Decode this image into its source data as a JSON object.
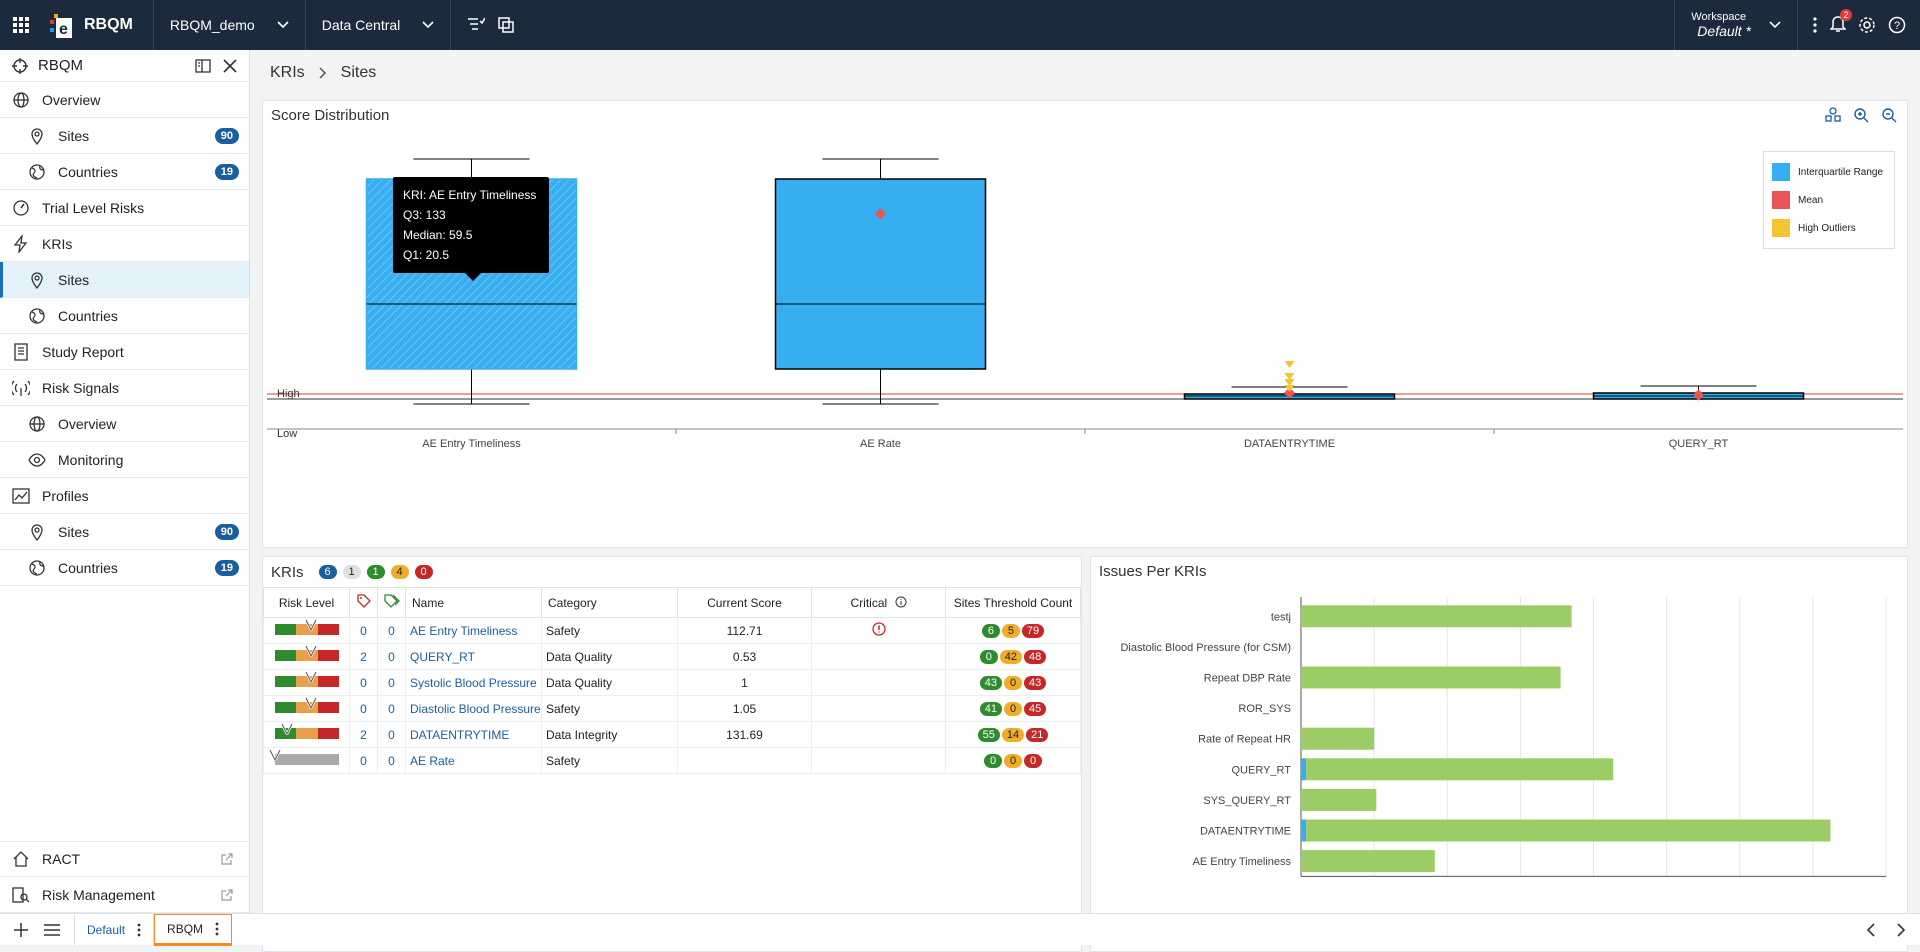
{
  "topbar": {
    "brand": "RBQM",
    "project": "RBQM_demo",
    "module": "Data Central",
    "workspace_label": "Workspace",
    "workspace_value": "Default",
    "workspace_star": "*",
    "notif_count": "2"
  },
  "sidebar": {
    "title": "RBQM",
    "items": [
      {
        "label": "Overview",
        "icon": "globe-icon"
      },
      {
        "label": "Sites",
        "icon": "location-pin-icon",
        "count": "90"
      },
      {
        "label": "Countries",
        "icon": "globe-grid-icon",
        "count": "19"
      },
      {
        "label": "Trial Level Risks",
        "icon": "gauge-icon"
      },
      {
        "label": "KRIs",
        "icon": "lightning-icon"
      },
      {
        "label": "Sites",
        "icon": "location-pin-icon"
      },
      {
        "label": "Countries",
        "icon": "globe-grid-icon"
      },
      {
        "label": "Study Report",
        "icon": "document-icon"
      },
      {
        "label": "Risk Signals",
        "icon": "signal-icon"
      },
      {
        "label": "Overview",
        "icon": "globe-icon"
      },
      {
        "label": "Monitoring",
        "icon": "eye-icon"
      },
      {
        "label": "Profiles",
        "icon": "chart-icon"
      },
      {
        "label": "Sites",
        "icon": "location-pin-icon",
        "count": "90"
      },
      {
        "label": "Countries",
        "icon": "globe-grid-icon",
        "count": "19"
      }
    ],
    "bottom": [
      {
        "label": "RACT",
        "icon": "home-icon"
      },
      {
        "label": "Risk Management",
        "icon": "search-doc-icon"
      }
    ]
  },
  "breadcrumb": {
    "root": "KRIs",
    "current": "Sites"
  },
  "score": {
    "title": "Score Distribution",
    "high": "High",
    "low": "Low",
    "legend": [
      {
        "label": "Interquartile Range",
        "color": "#36aef0"
      },
      {
        "label": "Mean",
        "color": "#e95555"
      },
      {
        "label": "High Outliers",
        "color": "#f5c431"
      }
    ],
    "tooltip": {
      "line1": "KRI: AE Entry Timeliness",
      "line2": "Q3: 133",
      "line3": "Median: 59.5",
      "line4": "Q1: 20.5"
    }
  },
  "chart_data": [
    {
      "type": "box",
      "title": "Score Distribution",
      "categories": [
        "AE Entry Timeliness",
        "AE Rate",
        "DATAENTRYTIME",
        "QUERY_RT"
      ],
      "boxes": [
        {
          "name": "AE Entry Timeliness",
          "q1": 20.5,
          "median": 59.5,
          "q3": 133
        }
      ],
      "legend": [
        "Interquartile Range",
        "Mean",
        "High Outliers"
      ]
    },
    {
      "type": "bar",
      "title": "Issues Per KRIs",
      "categories": [
        "testj",
        "Diastolic Blood Pressure (for CSM)",
        "Repeat DBP Rate",
        "ROR_SYS",
        "Rate of Repeat HR",
        "QUERY_RT",
        "SYS_QUERY_RT",
        "DATAENTRYTIME",
        "AE Entry Timeliness"
      ],
      "series": [
        {
          "values": [
            37,
            0,
            35.5,
            0,
            10,
            42,
            10.3,
            71.7,
            18.3
          ]
        },
        {
          "values": [
            0,
            0,
            0,
            0,
            0,
            0.7,
            0,
            0.7,
            0
          ]
        }
      ],
      "xlim": [
        0,
        80
      ]
    }
  ],
  "kris": {
    "title": "KRIs",
    "badges": [
      {
        "v": "6",
        "c": "pb"
      },
      {
        "v": "1",
        "c": "pgr"
      },
      {
        "v": "1",
        "c": "pg"
      },
      {
        "v": "4",
        "c": "po"
      },
      {
        "v": "0",
        "c": "pr"
      }
    ],
    "headers": {
      "risk": "Risk Level",
      "name": "Name",
      "category": "Category",
      "score": "Current Score",
      "critical": "Critical",
      "threshold": "Sites Threshold Count"
    },
    "rows": [
      {
        "a": "0",
        "b": "0",
        "name": "AE Entry Timeliness",
        "cat": "Safety",
        "score": "112.71",
        "crit": true,
        "g": "6",
        "o": "5",
        "r": "79",
        "level": 2,
        "grey": false
      },
      {
        "a": "2",
        "b": "0",
        "name": "QUERY_RT",
        "cat": "Data Quality",
        "score": "0.53",
        "crit": false,
        "g": "0",
        "o": "42",
        "r": "48",
        "level": 2,
        "grey": false
      },
      {
        "a": "0",
        "b": "0",
        "name": "Systolic Blood Pressure",
        "cat": "Data Quality",
        "score": "1",
        "crit": false,
        "g": "43",
        "o": "0",
        "r": "43",
        "level": 2,
        "grey": false
      },
      {
        "a": "0",
        "b": "0",
        "name": "Diastolic Blood Pressure",
        "cat": "Safety",
        "score": "1.05",
        "crit": false,
        "g": "41",
        "o": "0",
        "r": "45",
        "level": 2,
        "grey": false
      },
      {
        "a": "2",
        "b": "0",
        "name": "DATAENTRYTIME",
        "cat": "Data Integrity",
        "score": "131.69",
        "crit": false,
        "g": "55",
        "o": "14",
        "r": "21",
        "level": 1,
        "grey": false
      },
      {
        "a": "0",
        "b": "0",
        "name": "AE Rate",
        "cat": "Safety",
        "score": "",
        "crit": false,
        "g": "0",
        "o": "0",
        "r": "0",
        "level": 0,
        "grey": true
      }
    ]
  },
  "issues": {
    "title": "Issues Per KRIs"
  },
  "tabs": [
    {
      "label": "Default"
    },
    {
      "label": "RBQM"
    }
  ]
}
